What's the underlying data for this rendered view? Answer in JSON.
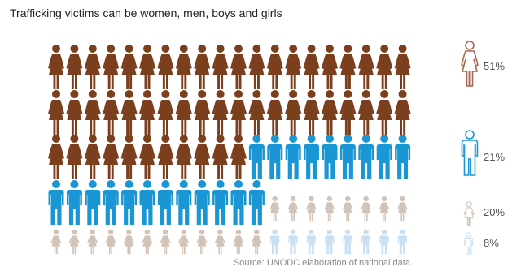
{
  "title": "Trafficking victims can be women, men, boys and girls",
  "source": "Source: UNODC elaboration of national data.",
  "chart_data": {
    "type": "pictogram",
    "title": "Trafficking victims can be women, men, boys and girls",
    "unit_percent_per_icon": 1,
    "total_icons": 100,
    "series": [
      {
        "name": "women",
        "label": "51%",
        "value": 51,
        "color": "#7b3f1e",
        "icon": "woman-icon"
      },
      {
        "name": "men",
        "label": "21%",
        "value": 21,
        "color": "#1a96d4",
        "icon": "man-icon"
      },
      {
        "name": "girls",
        "label": "20%",
        "value": 20,
        "color": "#d1c3b8",
        "icon": "girl-icon"
      },
      {
        "name": "boys",
        "label": "8%",
        "value": 8,
        "color": "#c8e0f2",
        "icon": "boy-icon"
      }
    ],
    "legend_placement": "right",
    "legend_outline_colors": [
      "#a9664a",
      "#1a96d4",
      "#d1c3b8",
      "#c8e0f2"
    ],
    "source": "Source: UNODC elaboration of national data."
  }
}
